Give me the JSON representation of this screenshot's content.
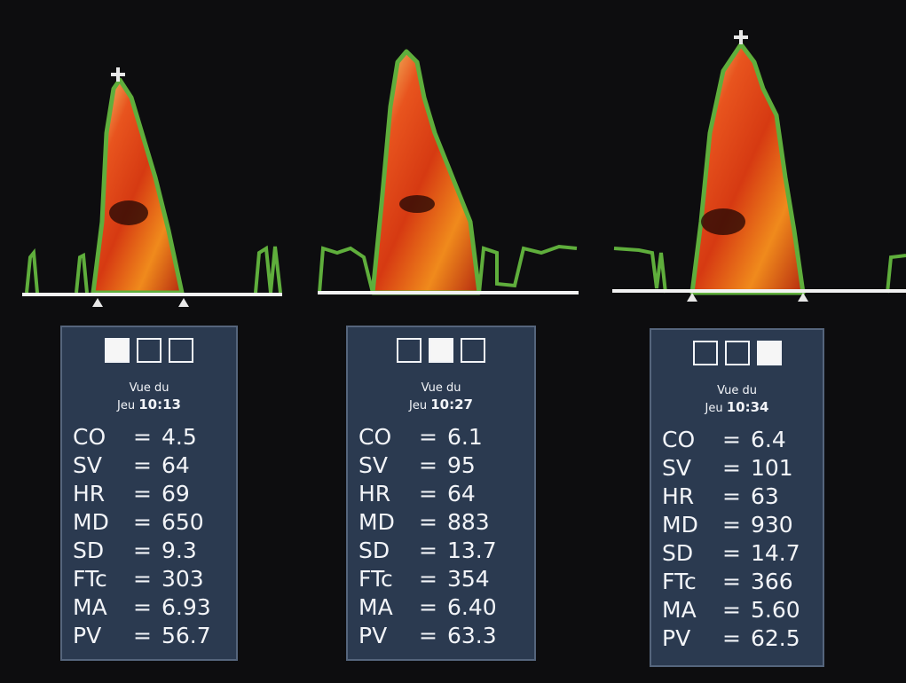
{
  "panels": [
    {
      "view": "Vue du",
      "day": "Jeu",
      "time": "10:13",
      "rows": [
        {
          "label": "CO",
          "value": "4.5"
        },
        {
          "label": "SV",
          "value": "64"
        },
        {
          "label": "HR",
          "value": "69"
        },
        {
          "label": "MD",
          "value": "650"
        },
        {
          "label": "SD",
          "value": "9.3"
        },
        {
          "label": "FTc",
          "value": "303"
        },
        {
          "label": "MA",
          "value": "6.93"
        },
        {
          "label": "PV",
          "value": "56.7"
        }
      ]
    },
    {
      "view": "Vue du",
      "day": "Jeu",
      "time": "10:27",
      "rows": [
        {
          "label": "CO",
          "value": "6.1"
        },
        {
          "label": "SV",
          "value": "95"
        },
        {
          "label": "HR",
          "value": "64"
        },
        {
          "label": "MD",
          "value": "883"
        },
        {
          "label": "SD",
          "value": "13.7"
        },
        {
          "label": "FTc",
          "value": "354"
        },
        {
          "label": "MA",
          "value": "6.40"
        },
        {
          "label": "PV",
          "value": "63.3"
        }
      ]
    },
    {
      "view": "Vue du",
      "day": "Jeu",
      "time": "10:34",
      "rows": [
        {
          "label": "CO",
          "value": "6.4"
        },
        {
          "label": "SV",
          "value": "101"
        },
        {
          "label": "HR",
          "value": "63"
        },
        {
          "label": "MD",
          "value": "930"
        },
        {
          "label": "SD",
          "value": "14.7"
        },
        {
          "label": "FTc",
          "value": "366"
        },
        {
          "label": "MA",
          "value": "5.60"
        },
        {
          "label": "PV",
          "value": "62.5"
        }
      ]
    }
  ],
  "separator": "="
}
